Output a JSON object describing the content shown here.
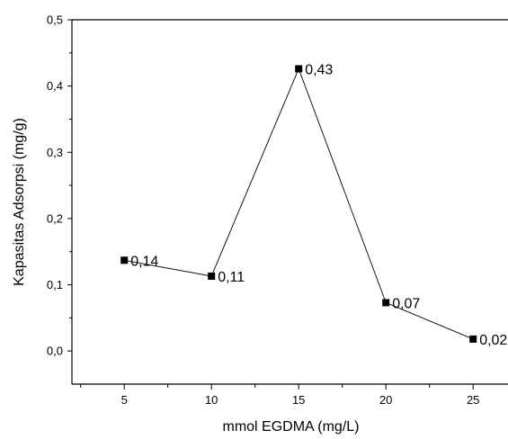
{
  "chart_data": {
    "type": "line",
    "xlabel": "mmol EGDMA (mg/L)",
    "ylabel": "Kapasitas Adsorpsi (mg/g)",
    "xlim": [
      2,
      27
    ],
    "ylim": [
      -0.05,
      0.5
    ],
    "x_ticks": [
      "5",
      "10",
      "15",
      "20",
      "25"
    ],
    "y_ticks": [
      "0,0",
      "0,1",
      "0,2",
      "0,3",
      "0,4",
      "0,5"
    ],
    "x_tick_values": [
      5,
      10,
      15,
      20,
      25
    ],
    "y_tick_values": [
      0,
      0.1,
      0.2,
      0.3,
      0.4,
      0.5
    ],
    "grid": false,
    "marker": "square",
    "line_color": "#000000",
    "series": [
      {
        "x": [
          5,
          10,
          15,
          20,
          25
        ],
        "values": [
          0.137,
          0.113,
          0.426,
          0.073,
          0.018
        ],
        "labels": [
          "0,14",
          "0,11",
          "0,43",
          "0,07",
          "0,02"
        ]
      }
    ]
  }
}
